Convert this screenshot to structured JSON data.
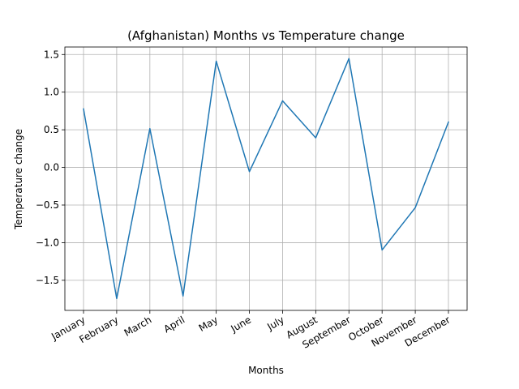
{
  "chart_data": {
    "type": "line",
    "title": "(Afghanistan) Months vs Temperature change",
    "xlabel": "Months",
    "ylabel": "Temperature change",
    "categories": [
      "January",
      "February",
      "March",
      "April",
      "May",
      "June",
      "July",
      "August",
      "September",
      "October",
      "November",
      "December"
    ],
    "series": [
      {
        "values": [
          0.777,
          -1.743,
          0.516,
          -1.709,
          1.412,
          -0.056,
          0.885,
          0.393,
          1.446,
          -1.097,
          -0.535,
          0.603
        ],
        "color": "#1f77b4"
      }
    ],
    "ylim": [
      -1.9,
      1.6
    ],
    "yticks": [
      -1.5,
      -1.0,
      -0.5,
      0.0,
      0.5,
      1.0,
      1.5
    ],
    "ytick_labels": [
      "−1.5",
      "−1.0",
      "−0.5",
      "0.0",
      "0.5",
      "1.0",
      "1.5"
    ],
    "grid": true
  }
}
